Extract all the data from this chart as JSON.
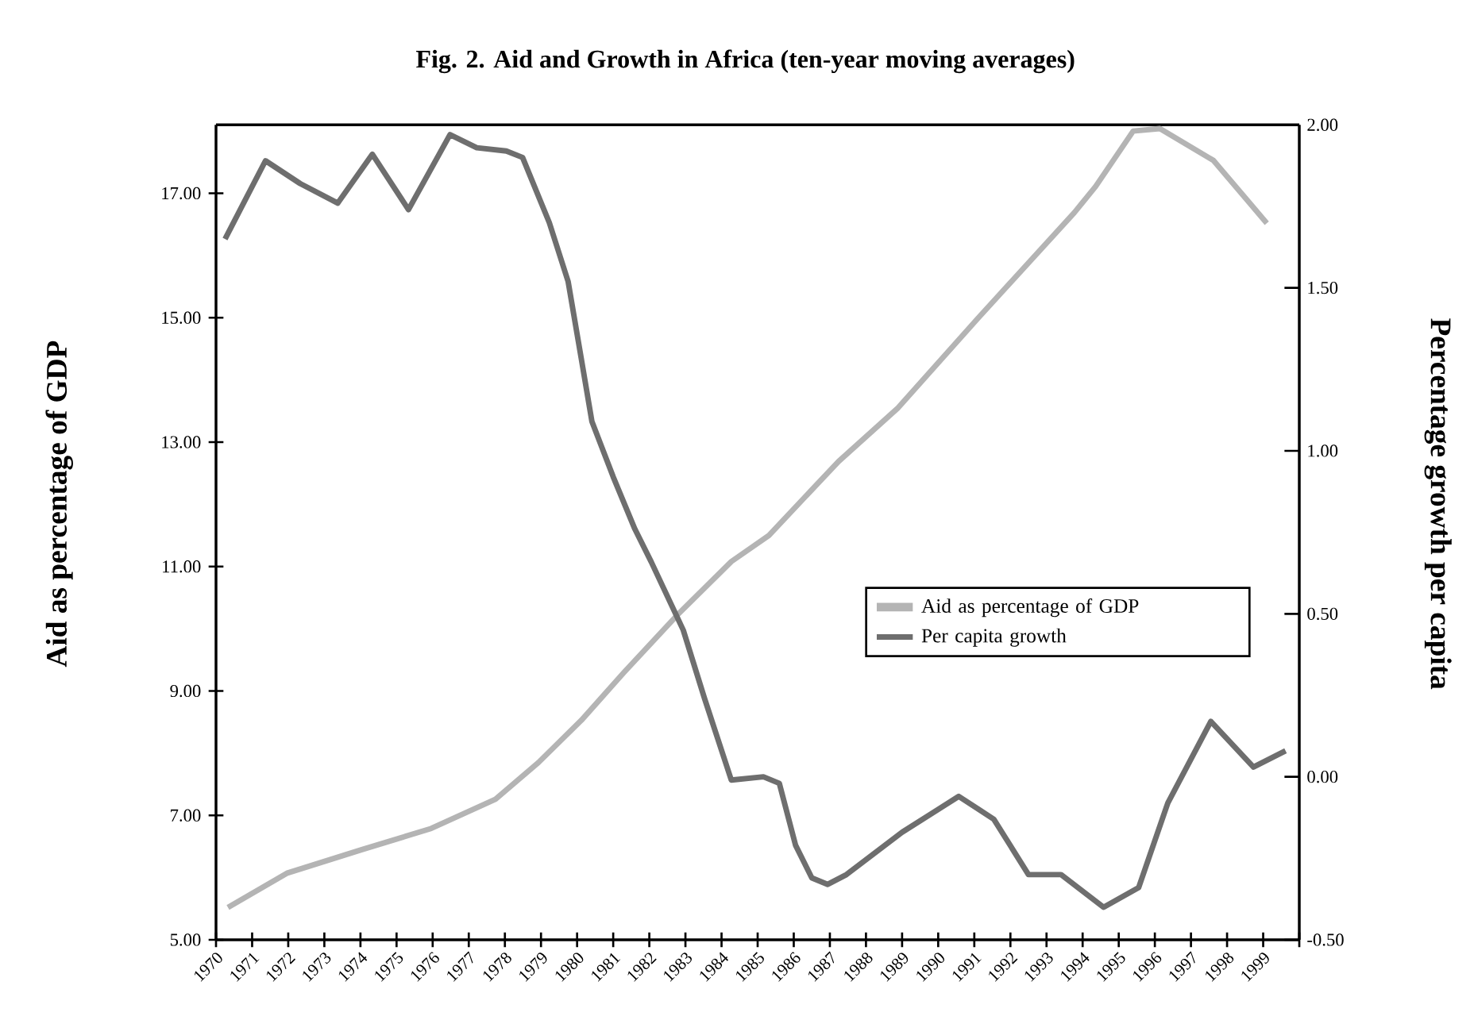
{
  "chart_data": {
    "type": "line",
    "title": "Fig. 2. Aid and Growth in Africa (ten-year moving averages)",
    "ylabel": "Aid as percentage of GDP",
    "y2label": "Percentage growth per capita",
    "xlim": [
      1970,
      2000
    ],
    "xticks": [
      1970,
      1971,
      1972,
      1973,
      1974,
      1975,
      1976,
      1977,
      1978,
      1979,
      1980,
      1981,
      1982,
      1983,
      1984,
      1985,
      1986,
      1987,
      1988,
      1989,
      1990,
      1991,
      1992,
      1993,
      1994,
      1995,
      1996,
      1997,
      1998,
      1999,
      {
        "value": 2000,
        "label": null
      }
    ],
    "ylim": [
      5,
      18.1
    ],
    "yticks": [
      {
        "value": 5,
        "label": "5.00"
      },
      {
        "value": 7,
        "label": "7.00"
      },
      {
        "value": 9,
        "label": "9.00"
      },
      {
        "value": 11,
        "label": "11.00"
      },
      {
        "value": 13,
        "label": "13.00"
      },
      {
        "value": 15,
        "label": "15.00"
      },
      {
        "value": 17,
        "label": "17.00"
      }
    ],
    "y2lim": [
      -0.5,
      2.0
    ],
    "y2ticks": [
      {
        "value": -0.5,
        "label": "-0.50"
      },
      {
        "value": 0,
        "label": "0.00"
      },
      {
        "value": 0.5,
        "label": "0.50"
      },
      {
        "value": 1,
        "label": "1.00"
      },
      {
        "value": 1.5,
        "label": "1.50"
      },
      {
        "value": 2,
        "label": "2.00"
      }
    ],
    "legend": "right",
    "grid": false,
    "line_style": "solid",
    "series": [
      {
        "name": "Aid as percentage of GDP",
        "color": "#b4b4b4",
        "axis": "y",
        "x": [
          1970.33,
          1971.96,
          1974.04,
          1975.96,
          1977.74,
          1978.93,
          1980.12,
          1981.3,
          1982.79,
          1984.27,
          1985.31,
          1987.24,
          1988.87,
          1991.1,
          1993.77,
          1994.36,
          1995.4,
          1996.14,
          1997.62,
          1999.1
        ],
        "values": [
          5.52,
          6.07,
          6.45,
          6.79,
          7.26,
          7.85,
          8.53,
          9.3,
          10.23,
          11.08,
          11.5,
          12.69,
          13.54,
          14.99,
          16.69,
          17.11,
          18.0,
          18.04,
          17.53,
          16.52
        ]
      },
      {
        "name": "Per capita growth",
        "color": "#6e6e6e",
        "axis": "y2",
        "x": [
          1970.25,
          1971.37,
          1972.33,
          1973.37,
          1974.33,
          1975.33,
          1976.48,
          1977.22,
          1978.04,
          1978.49,
          1979.23,
          1979.75,
          1980.12,
          1980.41,
          1981.0,
          1981.6,
          1982.05,
          1982.94,
          1983.53,
          1984.27,
          1985.16,
          1985.6,
          1986.05,
          1986.5,
          1986.94,
          1987.46,
          1989.0,
          1990.57,
          1991.54,
          1992.5,
          1993.4,
          1994.58,
          1995.55,
          1996.36,
          1997.55,
          1998.73,
          1999.62
        ],
        "values": [
          1.65,
          1.89,
          1.82,
          1.76,
          1.91,
          1.74,
          1.97,
          1.93,
          1.92,
          1.9,
          1.7,
          1.52,
          1.28,
          1.09,
          0.92,
          0.76,
          0.66,
          0.45,
          0.24,
          -0.01,
          0.0,
          -0.02,
          -0.21,
          -0.31,
          -0.33,
          -0.3,
          -0.17,
          -0.06,
          -0.13,
          -0.3,
          -0.3,
          -0.4,
          -0.34,
          -0.08,
          0.17,
          0.03,
          0.08
        ]
      }
    ]
  }
}
